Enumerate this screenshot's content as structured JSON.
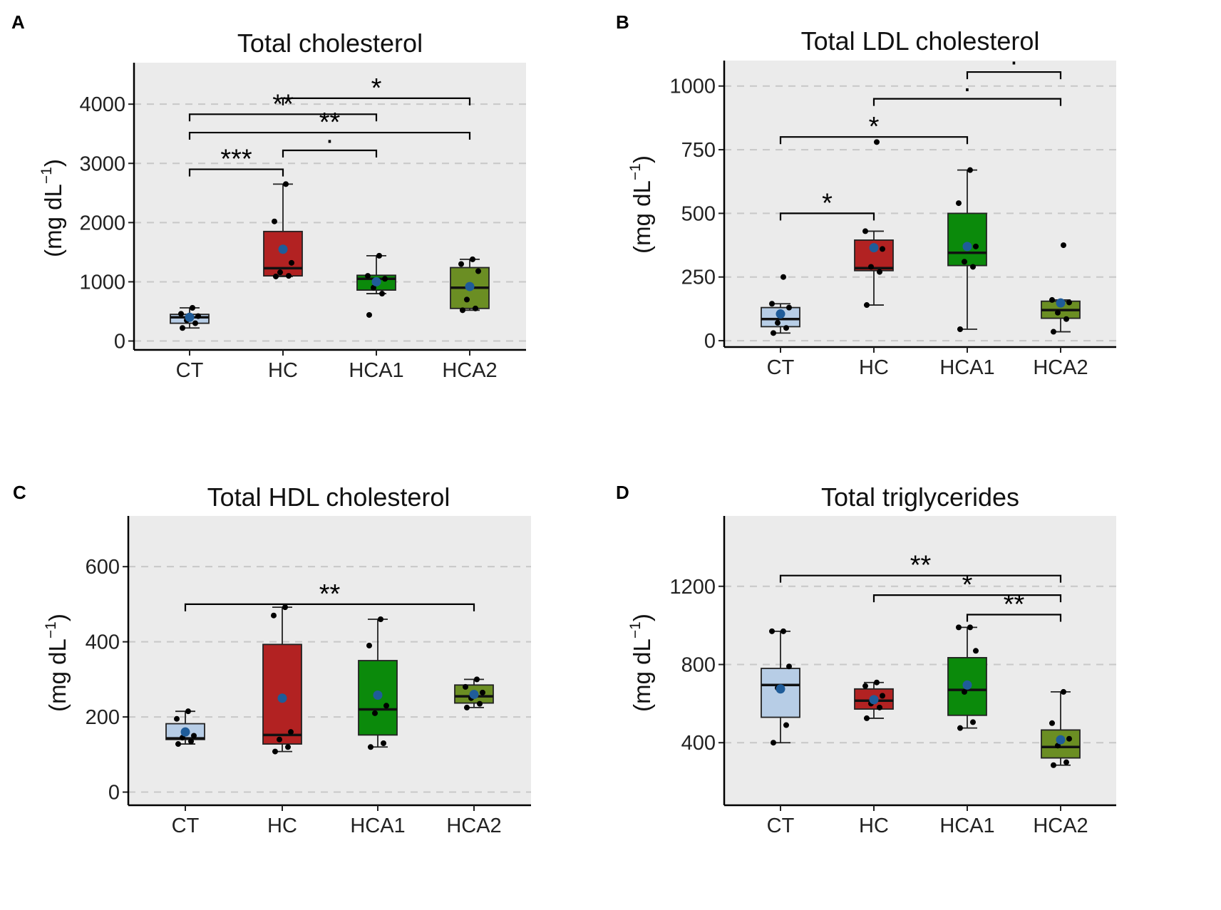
{
  "figure": {
    "panel_labels": [
      "A",
      "B",
      "C",
      "D"
    ],
    "colors": {
      "CT": "#b7cde6",
      "HC": "#b22222",
      "HCA1": "#0b8a0b",
      "HCA2": "#6b8e23",
      "mean_point": "#1f5c99",
      "panel_bg": "#ebebeb",
      "grid": "#c8c8c8"
    }
  },
  "chart_data": [
    {
      "type": "box",
      "label": "A",
      "title": "Total cholesterol",
      "ylabel": "(mg dL",
      "ylabel_sup": "−1",
      "ylabel_tail": ")",
      "xlabel": "",
      "categories": [
        "CT",
        "HC",
        "HCA1",
        "HCA2"
      ],
      "ylim": [
        -150,
        4700
      ],
      "yticks": [
        0,
        1000,
        2000,
        3000,
        4000
      ],
      "boxes": [
        {
          "q1": 300,
          "median": 400,
          "q3": 450,
          "whisker_low": 220,
          "whisker_high": 560,
          "mean": 400,
          "points": [
            220,
            300,
            350,
            420,
            460,
            560
          ]
        },
        {
          "q1": 1100,
          "median": 1230,
          "q3": 1850,
          "whisker_low": 1090,
          "whisker_high": 2650,
          "mean": 1550,
          "points": [
            1090,
            1100,
            1160,
            1320,
            2020,
            2650
          ]
        },
        {
          "q1": 860,
          "median": 1050,
          "q3": 1110,
          "whisker_low": 800,
          "whisker_high": 1440,
          "mean": 1000,
          "points": [
            440,
            800,
            900,
            1050,
            1100,
            1440
          ]
        },
        {
          "q1": 550,
          "median": 900,
          "q3": 1240,
          "whisker_low": 520,
          "whisker_high": 1380,
          "mean": 920,
          "points": [
            520,
            550,
            700,
            1180,
            1300,
            1380
          ]
        }
      ],
      "comparisons": [
        {
          "from": "HC",
          "to": "HCA2",
          "y": 4100,
          "label": "*"
        },
        {
          "from": "CT",
          "to": "HCA1",
          "y": 3830,
          "label": "**"
        },
        {
          "from": "CT",
          "to": "HCA2",
          "y": 3520,
          "label": "**"
        },
        {
          "from": "HC",
          "to": "HCA1",
          "y": 3220,
          "label": "·"
        },
        {
          "from": "CT",
          "to": "HC",
          "y": 2900,
          "label": "***"
        }
      ]
    },
    {
      "type": "box",
      "label": "B",
      "title": "Total LDL cholesterol",
      "ylabel": "(mg dL",
      "ylabel_sup": "−1",
      "ylabel_tail": ")",
      "xlabel": "",
      "categories": [
        "CT",
        "HC",
        "HCA1",
        "HCA2"
      ],
      "ylim": [
        -25,
        1100
      ],
      "yticks": [
        0,
        250,
        500,
        750,
        1000
      ],
      "boxes": [
        {
          "q1": 55,
          "median": 85,
          "q3": 130,
          "whisker_low": 30,
          "whisker_high": 145,
          "mean": 105,
          "points": [
            30,
            50,
            70,
            130,
            145,
            250
          ]
        },
        {
          "q1": 275,
          "median": 285,
          "q3": 395,
          "whisker_low": 140,
          "whisker_high": 430,
          "mean": 365,
          "points": [
            140,
            270,
            290,
            360,
            430,
            780
          ]
        },
        {
          "q1": 295,
          "median": 345,
          "q3": 500,
          "whisker_low": 45,
          "whisker_high": 670,
          "mean": 370,
          "points": [
            45,
            290,
            310,
            370,
            540,
            670
          ]
        },
        {
          "q1": 88,
          "median": 120,
          "q3": 155,
          "whisker_low": 35,
          "whisker_high": 160,
          "mean": 148,
          "points": [
            35,
            85,
            110,
            150,
            160,
            375
          ]
        }
      ],
      "comparisons": [
        {
          "from": "HCA1",
          "to": "HCA2",
          "y": 1055,
          "label": "·"
        },
        {
          "from": "HC",
          "to": "HCA2",
          "y": 950,
          "label": "·"
        },
        {
          "from": "CT",
          "to": "HCA1",
          "y": 800,
          "label": "*"
        },
        {
          "from": "CT",
          "to": "HC",
          "y": 500,
          "label": "*"
        }
      ]
    },
    {
      "type": "box",
      "label": "C",
      "title": "Total HDL cholesterol",
      "ylabel": "(mg dL",
      "ylabel_sup": "−1",
      "ylabel_tail": ")",
      "xlabel": "",
      "categories": [
        "CT",
        "HC",
        "HCA1",
        "HCA2"
      ],
      "ylim": [
        -35,
        735
      ],
      "yticks": [
        0,
        200,
        400,
        600
      ],
      "boxes": [
        {
          "q1": 140,
          "median": 143,
          "q3": 182,
          "whisker_low": 128,
          "whisker_high": 215,
          "mean": 160,
          "points": [
            128,
            135,
            145,
            150,
            195,
            215
          ]
        },
        {
          "q1": 128,
          "median": 152,
          "q3": 393,
          "whisker_low": 108,
          "whisker_high": 492,
          "mean": 250,
          "points": [
            108,
            120,
            140,
            160,
            470,
            492
          ]
        },
        {
          "q1": 152,
          "median": 220,
          "q3": 350,
          "whisker_low": 120,
          "whisker_high": 460,
          "mean": 258,
          "points": [
            120,
            130,
            210,
            230,
            390,
            460
          ]
        },
        {
          "q1": 237,
          "median": 255,
          "q3": 285,
          "whisker_low": 225,
          "whisker_high": 300,
          "mean": 260,
          "points": [
            225,
            235,
            250,
            265,
            280,
            300
          ]
        }
      ],
      "comparisons": [
        {
          "from": "CT",
          "to": "HCA2",
          "y": 500,
          "label": "**"
        }
      ]
    },
    {
      "type": "box",
      "label": "D",
      "title": "Total triglycerides",
      "ylabel": "(mg dL",
      "ylabel_sup": "−1",
      "ylabel_tail": ")",
      "xlabel": "",
      "categories": [
        "CT",
        "HC",
        "HCA1",
        "HCA2"
      ],
      "ylim": [
        80,
        1560
      ],
      "yticks": [
        400,
        800,
        1200
      ],
      "boxes": [
        {
          "q1": 530,
          "median": 695,
          "q3": 780,
          "whisker_low": 400,
          "whisker_high": 970,
          "mean": 675,
          "points": [
            400,
            490,
            680,
            790,
            970,
            970
          ]
        },
        {
          "q1": 572,
          "median": 615,
          "q3": 675,
          "whisker_low": 525,
          "whisker_high": 708,
          "mean": 620,
          "points": [
            525,
            580,
            600,
            640,
            690,
            708
          ]
        },
        {
          "q1": 540,
          "median": 670,
          "q3": 835,
          "whisker_low": 475,
          "whisker_high": 990,
          "mean": 695,
          "points": [
            475,
            505,
            660,
            870,
            990,
            990
          ]
        },
        {
          "q1": 322,
          "median": 378,
          "q3": 465,
          "whisker_low": 285,
          "whisker_high": 660,
          "mean": 415,
          "points": [
            285,
            300,
            385,
            420,
            500,
            660
          ]
        }
      ],
      "comparisons": [
        {
          "from": "CT",
          "to": "HCA2",
          "y": 1255,
          "label": "**"
        },
        {
          "from": "HC",
          "to": "HCA2",
          "y": 1155,
          "label": "*"
        },
        {
          "from": "HCA1",
          "to": "HCA2",
          "y": 1055,
          "label": "**"
        }
      ]
    }
  ]
}
